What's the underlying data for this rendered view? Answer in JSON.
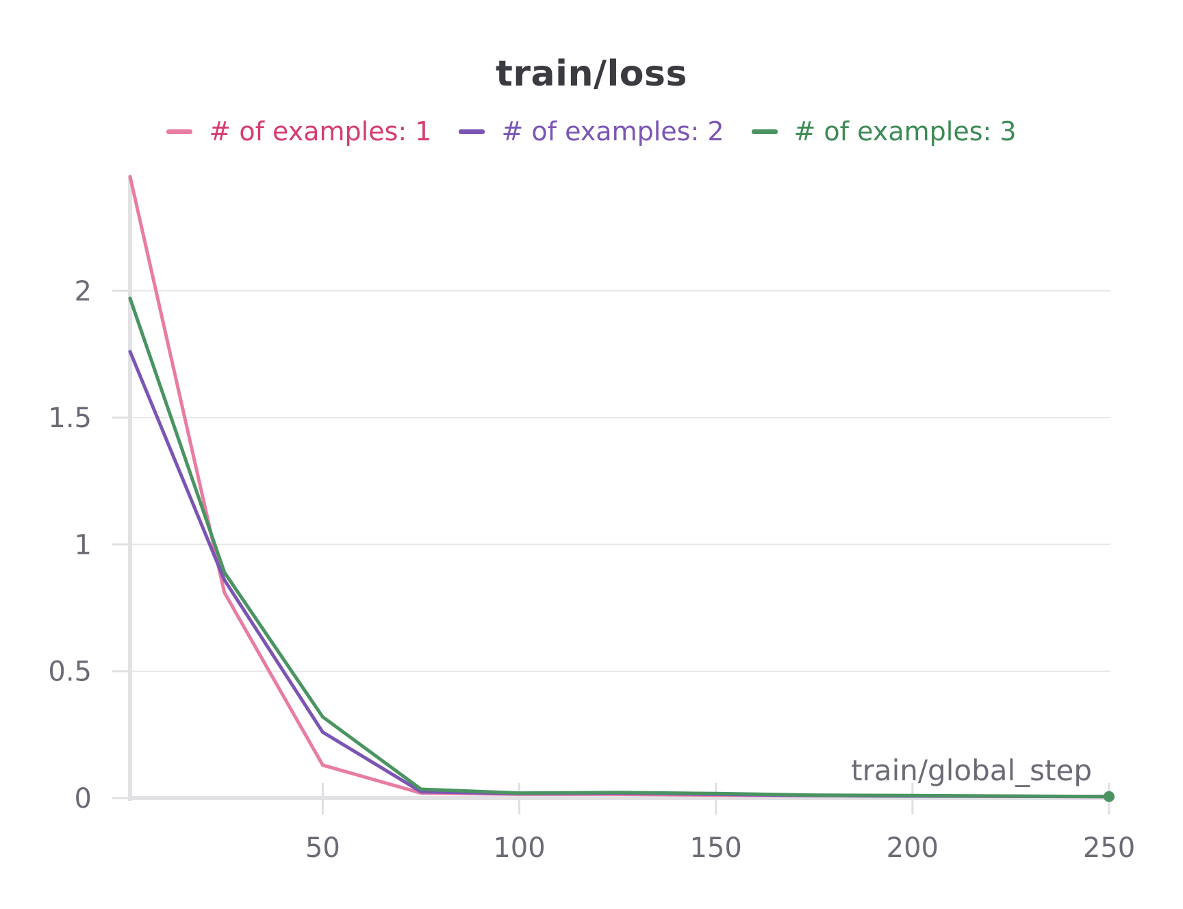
{
  "chart_data": {
    "type": "line",
    "title": "train/loss",
    "xlabel": "train/global_step",
    "ylabel": "",
    "xlim": [
      1,
      250
    ],
    "ylim": [
      0,
      2.45
    ],
    "x_ticks": [
      50,
      100,
      150,
      200,
      250
    ],
    "y_ticks": [
      0,
      0.5,
      1,
      1.5,
      2
    ],
    "y_tick_labels": [
      "0",
      "0.5",
      "1",
      "1.5",
      "2"
    ],
    "grid": true,
    "legend_position": "top-center",
    "series": [
      {
        "name": "# of examples: 1",
        "color": "#e87ca3",
        "text_color": "#d63d6e",
        "x": [
          1,
          25,
          50,
          75,
          100,
          125,
          150,
          175,
          200,
          225,
          250
        ],
        "y": [
          2.45,
          0.81,
          0.13,
          0.02,
          0.015,
          0.015,
          0.012,
          0.01,
          0.008,
          0.007,
          0.006
        ]
      },
      {
        "name": "# of examples: 2",
        "color": "#7b55b4",
        "text_color": "#7b55b4",
        "x": [
          1,
          25,
          50,
          75,
          100,
          125,
          150,
          175,
          200,
          225,
          250
        ],
        "y": [
          1.76,
          0.86,
          0.26,
          0.025,
          0.018,
          0.02,
          0.015,
          0.01,
          0.008,
          0.007,
          0.006
        ]
      },
      {
        "name": "# of examples: 3",
        "color": "#4a9462",
        "text_color": "#3d8a55",
        "x": [
          1,
          25,
          50,
          75,
          100,
          125,
          150,
          175,
          200,
          225,
          250
        ],
        "y": [
          1.97,
          0.89,
          0.32,
          0.035,
          0.02,
          0.022,
          0.018,
          0.012,
          0.01,
          0.008,
          0.006
        ]
      }
    ]
  }
}
